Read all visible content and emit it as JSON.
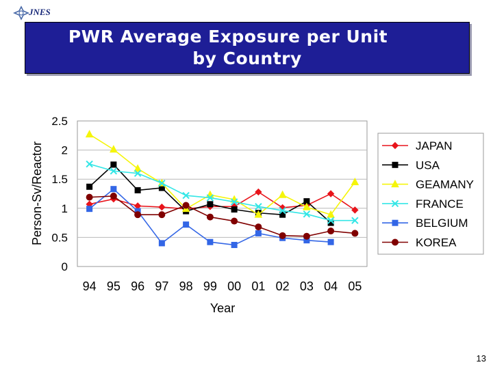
{
  "header": {
    "logo_text": "JNES",
    "title_line1": "PWR Average Exposure per Unit",
    "title_line2": "by Country"
  },
  "page_number": "13",
  "chart_data": {
    "type": "line",
    "categories": [
      "94",
      "95",
      "96",
      "97",
      "98",
      "99",
      "00",
      "01",
      "02",
      "03",
      "04",
      "05"
    ],
    "xlabel": "Year",
    "ylabel": "Person-Sv/Reactor",
    "ylim": [
      0,
      2.5
    ],
    "yticks": [
      "0",
      "0.5",
      "1",
      "1.5",
      "2",
      "2.5"
    ],
    "grid": "horizontal",
    "legend_position": "right",
    "series": [
      {
        "name": "JAPAN",
        "color": "#e8141b",
        "marker": "diamond",
        "values": [
          1.07,
          1.16,
          1.04,
          1.02,
          0.99,
          1.03,
          1.03,
          1.28,
          1.01,
          1.05,
          1.25,
          0.97
        ]
      },
      {
        "name": "USA",
        "color": "#000000",
        "marker": "square",
        "values": [
          1.37,
          1.75,
          1.31,
          1.35,
          0.95,
          1.07,
          0.98,
          0.92,
          0.89,
          1.12,
          0.75,
          null
        ]
      },
      {
        "name": "GEAMANY",
        "color": "#f5f50a",
        "marker": "triangle",
        "values": [
          2.27,
          2.01,
          1.68,
          1.43,
          0.99,
          1.23,
          1.15,
          0.89,
          1.23,
          1.02,
          0.89,
          1.45
        ]
      },
      {
        "name": "FRANCE",
        "color": "#33e6e6",
        "marker": "x",
        "values": [
          1.76,
          1.64,
          1.6,
          1.43,
          1.22,
          1.18,
          1.11,
          1.03,
          0.96,
          0.9,
          0.79,
          0.79
        ]
      },
      {
        "name": "BELGIUM",
        "color": "#3366e6",
        "marker": "square",
        "values": [
          0.99,
          1.33,
          0.95,
          0.4,
          0.72,
          0.42,
          0.37,
          0.57,
          0.49,
          0.45,
          0.42,
          null
        ]
      },
      {
        "name": "KOREA",
        "color": "#800000",
        "marker": "circle",
        "values": [
          1.19,
          1.21,
          0.89,
          0.89,
          1.05,
          0.85,
          0.78,
          0.68,
          0.53,
          0.52,
          0.61,
          0.57
        ]
      }
    ]
  }
}
